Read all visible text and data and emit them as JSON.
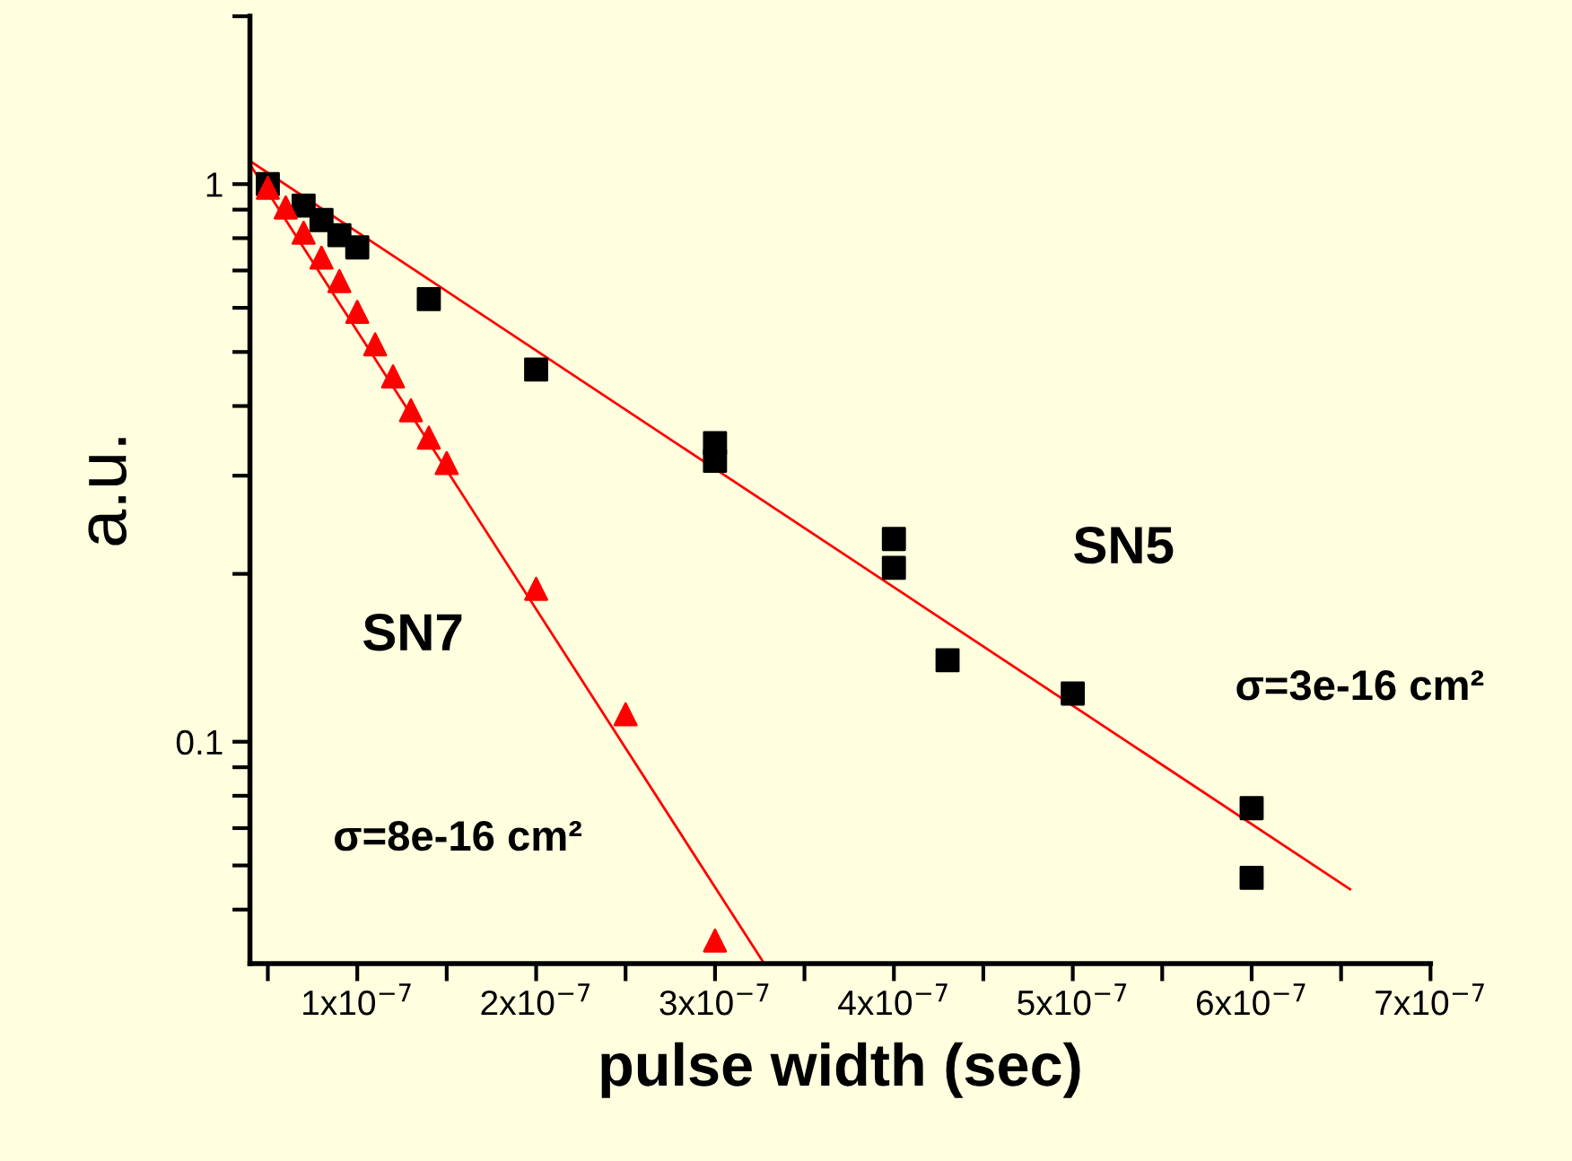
{
  "chart_data": {
    "type": "scatter",
    "xlabel": "pulse width (sec)",
    "ylabel": "a.u.",
    "log": "y",
    "xlim": [
      4e-08,
      7e-07
    ],
    "ylim": [
      0.04,
      2
    ],
    "xticks": [
      {
        "value": 5e-08,
        "label": null
      },
      {
        "value": 1e-07,
        "label": "1x10$^{−7}$"
      },
      {
        "value": 1.5e-07,
        "label": null
      },
      {
        "value": 2e-07,
        "label": "2x10$^{−7}$"
      },
      {
        "value": 2.5e-07,
        "label": null
      },
      {
        "value": 3e-07,
        "label": "3x10$^{−7}$"
      },
      {
        "value": 3.5e-07,
        "label": null
      },
      {
        "value": 4e-07,
        "label": "4x10$^{−7}$"
      },
      {
        "value": 4.5e-07,
        "label": null
      },
      {
        "value": 5e-07,
        "label": "5x10$^{−7}$"
      },
      {
        "value": 5.5e-07,
        "label": null
      },
      {
        "value": 6e-07,
        "label": "6x10$^{−7}$"
      },
      {
        "value": 6.5e-07,
        "label": null
      },
      {
        "value": 7e-07,
        "label": "7x10$^{−7}$"
      }
    ],
    "yticks": [
      {
        "value": 0.05,
        "label": null
      },
      {
        "value": 0.06,
        "label": null
      },
      {
        "value": 0.07,
        "label": null
      },
      {
        "value": 0.08,
        "label": null
      },
      {
        "value": 0.09,
        "label": null
      },
      0.1,
      {
        "value": 0.2,
        "label": null
      },
      {
        "value": 0.3,
        "label": null
      },
      {
        "value": 0.4,
        "label": null
      },
      {
        "value": 0.5,
        "label": null
      },
      {
        "value": 0.6,
        "label": null
      },
      {
        "value": 0.7,
        "label": null
      },
      {
        "value": 0.8,
        "label": null
      },
      {
        "value": 0.9,
        "label": null
      },
      1,
      {
        "value": 2,
        "label": null
      }
    ],
    "grid": false,
    "legend": false,
    "series": [
      {
        "marker": "square",
        "color": "#000000",
        "x": [
          5e-08,
          7e-08,
          8e-08,
          9e-08,
          1e-07,
          1.4e-07,
          2e-07,
          3e-07,
          3e-07,
          4e-07,
          4e-07,
          4.3e-07,
          5e-07,
          6e-07,
          6e-07
        ],
        "values": [
          1.0,
          0.915,
          0.862,
          0.81,
          0.77,
          0.622,
          0.465,
          0.343,
          0.319,
          0.231,
          0.205,
          0.14,
          0.122,
          0.076,
          0.057
        ]
      },
      {
        "marker": "triangle",
        "color": "#ff0000",
        "x": [
          5e-08,
          6e-08,
          7e-08,
          8e-08,
          9e-08,
          1e-07,
          1.1e-07,
          1.2e-07,
          1.3e-07,
          1.4e-07,
          1.5e-07,
          2e-07,
          2.5e-07,
          3e-07
        ],
        "values": [
          0.985,
          0.908,
          0.818,
          0.738,
          0.67,
          0.59,
          0.516,
          0.452,
          0.393,
          0.351,
          0.316,
          0.188,
          0.112,
          0.044
        ]
      },
      {
        "type": "line",
        "marker": "none",
        "color": "#ff0000",
        "x": [
          4e-08,
          6.55e-07
        ],
        "values": [
          1.1,
          0.0544
        ]
      },
      {
        "type": "line",
        "marker": "none",
        "color": "#ff0000",
        "x": [
          4e-08,
          3.275e-07
        ],
        "values": [
          1.085,
          0.04
        ]
      }
    ],
    "annotations": [
      "SN5",
      "σ=3e-16 cm²",
      "SN7",
      "σ=8e-16 cm²"
    ]
  }
}
